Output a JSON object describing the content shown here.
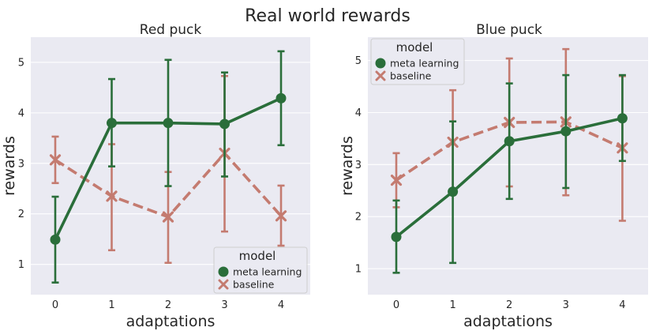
{
  "figure": {
    "title": "Real world rewards"
  },
  "colors": {
    "meta_learning": "#2a6e3a",
    "baseline": "#c47b70",
    "panel_bg": "#eaeaf2",
    "grid": "#ffffff"
  },
  "chart_data": [
    {
      "type": "line",
      "title": "Red puck",
      "xlabel": "adaptations",
      "ylabel": "rewards",
      "categories": [
        "0",
        "1",
        "2",
        "3",
        "4"
      ],
      "ylim": [
        0.4,
        5.5
      ],
      "yticks": [
        "1",
        "2",
        "3",
        "4",
        "5"
      ],
      "legend": {
        "title": "model",
        "placement": "lower-right"
      },
      "series": [
        {
          "name": "meta learning",
          "marker": "circle",
          "linestyle": "solid",
          "values": [
            1.49,
            3.8,
            3.8,
            3.78,
            4.29
          ],
          "err_low": [
            0.64,
            2.94,
            2.55,
            2.74,
            3.36
          ],
          "err_high": [
            2.34,
            4.67,
            5.05,
            4.8,
            5.22
          ]
        },
        {
          "name": "baseline",
          "marker": "x",
          "linestyle": "dashed",
          "values": [
            3.07,
            2.35,
            1.94,
            3.2,
            1.96
          ],
          "err_low": [
            2.61,
            1.28,
            1.03,
            1.65,
            1.37
          ],
          "err_high": [
            3.53,
            3.38,
            2.83,
            4.73,
            2.56
          ]
        }
      ]
    },
    {
      "type": "line",
      "title": "Blue puck",
      "xlabel": "adaptations",
      "ylabel": "rewards",
      "categories": [
        "0",
        "1",
        "2",
        "3",
        "4"
      ],
      "ylim": [
        0.5,
        5.45
      ],
      "yticks": [
        "1",
        "2",
        "3",
        "4",
        "5"
      ],
      "legend": {
        "title": "model",
        "placement": "upper-left"
      },
      "series": [
        {
          "name": "meta learning",
          "marker": "circle",
          "linestyle": "solid",
          "values": [
            1.61,
            2.48,
            3.45,
            3.64,
            3.89
          ],
          "err_low": [
            0.92,
            1.11,
            2.34,
            2.55,
            3.07
          ],
          "err_high": [
            2.31,
            3.83,
            4.56,
            4.72,
            4.72
          ]
        },
        {
          "name": "baseline",
          "marker": "x",
          "linestyle": "dashed",
          "values": [
            2.7,
            3.43,
            3.81,
            3.82,
            3.32
          ],
          "err_low": [
            2.18,
            2.42,
            2.58,
            2.41,
            1.92
          ],
          "err_high": [
            3.22,
            4.43,
            5.04,
            5.22,
            4.7
          ]
        }
      ]
    }
  ]
}
